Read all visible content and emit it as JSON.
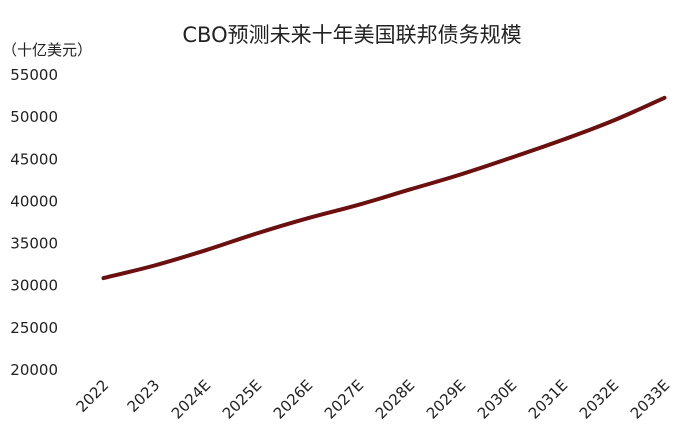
{
  "chart_data": {
    "type": "line",
    "title": "CBO预测未来十年美国联邦债务规模",
    "ylabel": "（十亿美元）",
    "xlabel": "",
    "categories": [
      "2022",
      "2023",
      "2024E",
      "2025E",
      "2026E",
      "2027E",
      "2028E",
      "2029E",
      "2030E",
      "2031E",
      "2032E",
      "2033E"
    ],
    "series": [
      {
        "values": [
          30900,
          32400,
          34200,
          36200,
          38000,
          39600,
          41400,
          43200,
          45200,
          47300,
          49600,
          52300
        ]
      }
    ],
    "ylim": [
      20000,
      55000
    ],
    "yticks": [
      20000,
      25000,
      30000,
      35000,
      40000,
      45000,
      50000,
      55000
    ],
    "grid": false,
    "legend": "none",
    "line_color": "#6b0f0f"
  }
}
